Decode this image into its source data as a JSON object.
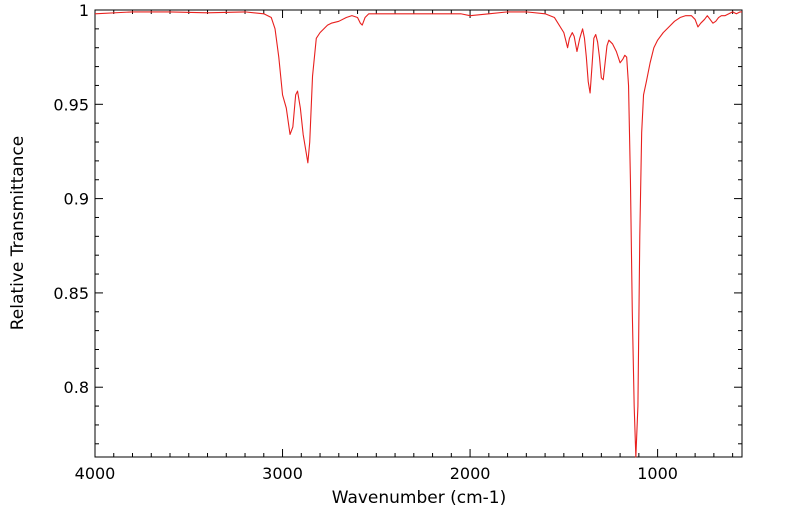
{
  "chart_data": {
    "type": "line",
    "title": "",
    "xlabel": "Wavenumber (cm-1)",
    "ylabel": "Relative Transmittance",
    "xlim": [
      4000,
      550
    ],
    "ylim": [
      0.763,
      1.0
    ],
    "x_reversed": true,
    "grid": false,
    "legend": "none",
    "x_ticks": [
      {
        "value": 4000,
        "label": "4000"
      },
      {
        "value": 3000,
        "label": "3000"
      },
      {
        "value": 2000,
        "label": "2000"
      },
      {
        "value": 1000,
        "label": "1000"
      }
    ],
    "y_ticks": [
      {
        "value": 1.0,
        "label": "1"
      },
      {
        "value": 0.95,
        "label": "0.95"
      },
      {
        "value": 0.9,
        "label": "0.9"
      },
      {
        "value": 0.85,
        "label": "0.85"
      },
      {
        "value": 0.8,
        "label": "0.8"
      }
    ],
    "series": [
      {
        "color": "#e8201e",
        "points": [
          [
            4000,
            0.998
          ],
          [
            3800,
            0.999
          ],
          [
            3600,
            0.999
          ],
          [
            3400,
            0.9985
          ],
          [
            3200,
            0.999
          ],
          [
            3100,
            0.998
          ],
          [
            3060,
            0.996
          ],
          [
            3040,
            0.99
          ],
          [
            3020,
            0.975
          ],
          [
            3000,
            0.955
          ],
          [
            2980,
            0.948
          ],
          [
            2960,
            0.934
          ],
          [
            2945,
            0.938
          ],
          [
            2930,
            0.955
          ],
          [
            2920,
            0.957
          ],
          [
            2905,
            0.948
          ],
          [
            2890,
            0.934
          ],
          [
            2875,
            0.925
          ],
          [
            2865,
            0.919
          ],
          [
            2855,
            0.93
          ],
          [
            2840,
            0.965
          ],
          [
            2820,
            0.985
          ],
          [
            2800,
            0.988
          ],
          [
            2780,
            0.99
          ],
          [
            2760,
            0.992
          ],
          [
            2740,
            0.993
          ],
          [
            2700,
            0.994
          ],
          [
            2660,
            0.996
          ],
          [
            2630,
            0.997
          ],
          [
            2600,
            0.996
          ],
          [
            2585,
            0.993
          ],
          [
            2575,
            0.992
          ],
          [
            2560,
            0.996
          ],
          [
            2540,
            0.998
          ],
          [
            2400,
            0.998
          ],
          [
            2300,
            0.998
          ],
          [
            2150,
            0.998
          ],
          [
            2050,
            0.998
          ],
          [
            2000,
            0.997
          ],
          [
            1900,
            0.998
          ],
          [
            1800,
            0.999
          ],
          [
            1700,
            0.999
          ],
          [
            1600,
            0.998
          ],
          [
            1550,
            0.996
          ],
          [
            1500,
            0.988
          ],
          [
            1480,
            0.98
          ],
          [
            1470,
            0.985
          ],
          [
            1455,
            0.988
          ],
          [
            1445,
            0.986
          ],
          [
            1430,
            0.978
          ],
          [
            1415,
            0.985
          ],
          [
            1400,
            0.99
          ],
          [
            1390,
            0.985
          ],
          [
            1380,
            0.975
          ],
          [
            1370,
            0.962
          ],
          [
            1360,
            0.956
          ],
          [
            1350,
            0.97
          ],
          [
            1340,
            0.985
          ],
          [
            1330,
            0.987
          ],
          [
            1320,
            0.983
          ],
          [
            1310,
            0.975
          ],
          [
            1300,
            0.964
          ],
          [
            1290,
            0.963
          ],
          [
            1280,
            0.972
          ],
          [
            1270,
            0.981
          ],
          [
            1260,
            0.984
          ],
          [
            1240,
            0.982
          ],
          [
            1220,
            0.978
          ],
          [
            1200,
            0.972
          ],
          [
            1185,
            0.974
          ],
          [
            1175,
            0.976
          ],
          [
            1165,
            0.975
          ],
          [
            1155,
            0.96
          ],
          [
            1145,
            0.91
          ],
          [
            1135,
            0.84
          ],
          [
            1125,
            0.79
          ],
          [
            1116,
            0.763
          ],
          [
            1105,
            0.79
          ],
          [
            1095,
            0.88
          ],
          [
            1085,
            0.935
          ],
          [
            1075,
            0.955
          ],
          [
            1060,
            0.962
          ],
          [
            1040,
            0.972
          ],
          [
            1020,
            0.98
          ],
          [
            1000,
            0.984
          ],
          [
            970,
            0.988
          ],
          [
            940,
            0.991
          ],
          [
            910,
            0.994
          ],
          [
            880,
            0.996
          ],
          [
            850,
            0.997
          ],
          [
            820,
            0.997
          ],
          [
            800,
            0.995
          ],
          [
            785,
            0.991
          ],
          [
            770,
            0.993
          ],
          [
            750,
            0.995
          ],
          [
            735,
            0.997
          ],
          [
            720,
            0.995
          ],
          [
            705,
            0.993
          ],
          [
            690,
            0.994
          ],
          [
            675,
            0.996
          ],
          [
            660,
            0.997
          ],
          [
            640,
            0.997
          ],
          [
            620,
            0.998
          ],
          [
            600,
            0.999
          ],
          [
            580,
            0.998
          ],
          [
            560,
            0.999
          ],
          [
            550,
            0.999
          ]
        ]
      }
    ]
  }
}
